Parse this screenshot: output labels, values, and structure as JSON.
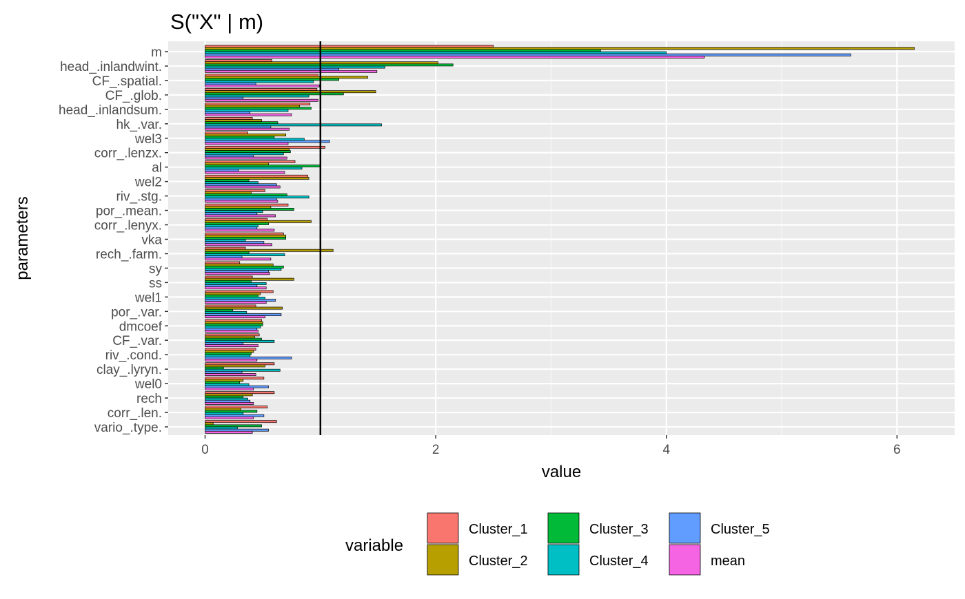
{
  "chart_data": {
    "type": "bar",
    "orientation": "horizontal",
    "title": "S(\"X\" | m)",
    "xlabel": "value",
    "ylabel": "parameters",
    "xlim": [
      -0.32,
      6.5
    ],
    "x_ticks": [
      0,
      2,
      4,
      6
    ],
    "grid": true,
    "reference_line": 1,
    "legend": {
      "title": "variable",
      "position": "bottom"
    },
    "colors": {
      "Cluster_1": "#F8766D",
      "Cluster_2": "#B79F00",
      "Cluster_3": "#00BA38",
      "Cluster_4": "#00BFC4",
      "Cluster_5": "#619CFF",
      "mean": "#F564E3"
    },
    "categories": [
      "m",
      "head_.inlandwint.",
      "CF_.spatial.",
      "CF_.glob.",
      "head_.inlandsum.",
      "hk_.var.",
      "wel3",
      "corr_.lenzx.",
      "al",
      "wel2",
      "riv_.stg.",
      "por_.mean.",
      "corr_.lenyx.",
      "vka",
      "rech_.farm.",
      "sy",
      "ss",
      "wel1",
      "por_.var.",
      "dmcoef",
      "CF_.var.",
      "riv_.cond.",
      "clay_.lyryn.",
      "wel0",
      "rech",
      "corr_.len.",
      "vario_.type."
    ],
    "series": [
      {
        "name": "Cluster_1",
        "values": [
          2.5,
          0.58,
          0.98,
          0.97,
          0.91,
          0.41,
          0.37,
          1.04,
          0.78,
          0.89,
          0.52,
          0.72,
          0.54,
          0.68,
          0.35,
          0.3,
          0.41,
          0.59,
          0.44,
          0.49,
          0.47,
          0.44,
          0.6,
          0.51,
          0.6,
          0.54,
          0.62
        ]
      },
      {
        "name": "Cluster_2",
        "values": [
          6.15,
          2.02,
          1.41,
          1.48,
          0.82,
          0.49,
          0.7,
          0.73,
          0.55,
          0.9,
          0.4,
          0.57,
          0.92,
          0.7,
          1.11,
          0.59,
          0.77,
          0.48,
          0.67,
          0.5,
          0.43,
          0.42,
          0.52,
          0.33,
          0.41,
          0.31,
          0.07
        ]
      },
      {
        "name": "Cluster_3",
        "values": [
          3.43,
          2.15,
          1.16,
          1.2,
          0.92,
          0.63,
          0.6,
          0.74,
          1.0,
          0.38,
          0.71,
          0.77,
          0.55,
          0.7,
          0.38,
          0.68,
          0.4,
          0.46,
          0.24,
          0.5,
          0.49,
          0.4,
          0.16,
          0.3,
          0.33,
          0.45,
          0.49
        ]
      },
      {
        "name": "Cluster_4",
        "values": [
          4.0,
          1.56,
          0.94,
          0.9,
          0.72,
          1.53,
          0.86,
          0.68,
          0.84,
          0.46,
          0.9,
          0.5,
          0.46,
          0.35,
          0.69,
          0.66,
          0.53,
          0.52,
          0.36,
          0.48,
          0.6,
          0.39,
          0.65,
          0.38,
          0.37,
          0.33,
          0.28
        ]
      },
      {
        "name": "Cluster_5",
        "values": [
          5.6,
          1.16,
          0.44,
          0.33,
          0.39,
          0.57,
          1.08,
          0.42,
          0.29,
          0.62,
          0.62,
          0.45,
          0.45,
          0.51,
          0.32,
          0.55,
          0.45,
          0.61,
          0.66,
          0.45,
          0.33,
          0.75,
          0.32,
          0.55,
          0.39,
          0.51,
          0.55
        ]
      },
      {
        "name": "mean",
        "values": [
          4.33,
          1.49,
          0.99,
          0.98,
          0.75,
          0.73,
          0.72,
          0.71,
          0.69,
          0.65,
          0.63,
          0.61,
          0.6,
          0.58,
          0.57,
          0.56,
          0.53,
          0.53,
          0.52,
          0.46,
          0.46,
          0.45,
          0.44,
          0.42,
          0.42,
          0.42,
          0.41
        ]
      }
    ]
  }
}
